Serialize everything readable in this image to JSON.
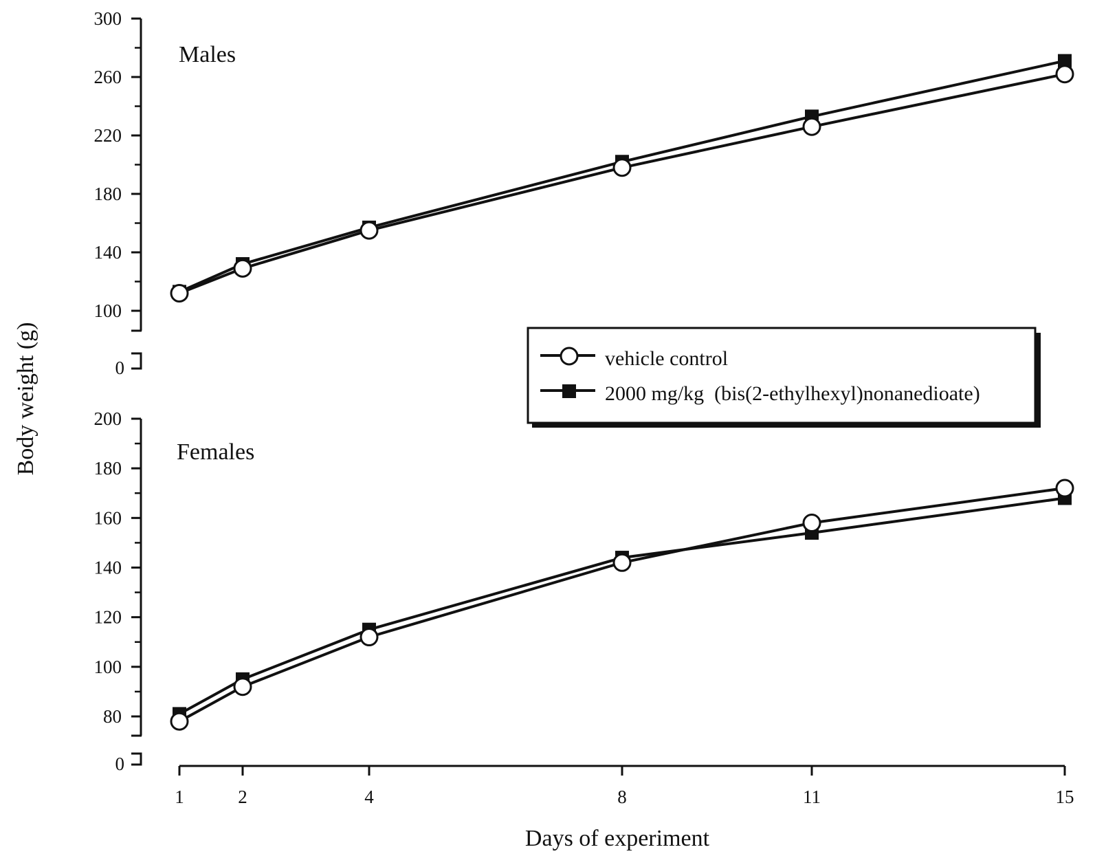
{
  "chart_data": {
    "type": "line",
    "xlabel": "Days of experiment",
    "ylabel": "Body weight (g)",
    "x": [
      1,
      2,
      4,
      8,
      11,
      15
    ],
    "x_ticks": [
      "1",
      "2",
      "4",
      "8",
      "11",
      "15"
    ],
    "legend": {
      "placement": "middle-right",
      "entries": [
        {
          "label": "vehicle control",
          "marker": "open-circle"
        },
        {
          "label": "2000 mg/kg  (bis(2-ethylhexyl)nonanedioate)",
          "marker": "filled-square"
        }
      ]
    },
    "panels": [
      {
        "title": "Males",
        "ylim": [
          100,
          300
        ],
        "axis_break": true,
        "y_ticks": [
          "300",
          "260",
          "220",
          "180",
          "140",
          "100"
        ],
        "y_zero_label": "0",
        "series": [
          {
            "name": "vehicle control",
            "marker": "open-circle",
            "values": [
              112,
              129,
              155,
              198,
              226,
              262
            ]
          },
          {
            "name": "2000 mg/kg  (bis(2-ethylhexyl)nonanedioate)",
            "marker": "filled-square",
            "values": [
              113,
              132,
              157,
              202,
              233,
              271
            ]
          }
        ]
      },
      {
        "title": "Females",
        "ylim": [
          80,
          200
        ],
        "axis_break": true,
        "y_ticks": [
          "200",
          "180",
          "160",
          "140",
          "120",
          "100",
          "80"
        ],
        "y_zero_label": "0",
        "series": [
          {
            "name": "vehicle control",
            "marker": "open-circle",
            "values": [
              78,
              92,
              112,
              142,
              158,
              172
            ]
          },
          {
            "name": "2000 mg/kg  (bis(2-ethylhexyl)nonanedioate)",
            "marker": "filled-square",
            "values": [
              81,
              95,
              115,
              144,
              154,
              168
            ]
          }
        ]
      }
    ]
  }
}
